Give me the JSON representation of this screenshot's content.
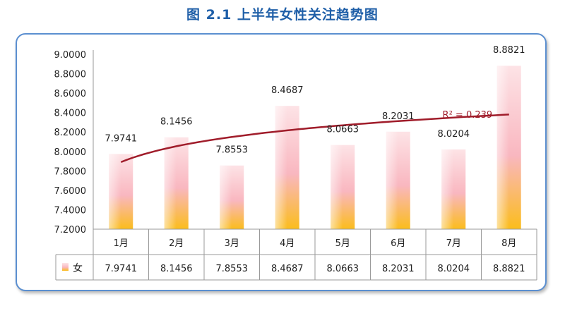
{
  "title": "图 2.1 上半年女性关注趋势图",
  "chart_data": {
    "type": "bar",
    "title": "图 2.1 上半年女性关注趋势图",
    "categories": [
      "1月",
      "2月",
      "3月",
      "4月",
      "5月",
      "6月",
      "7月",
      "8月"
    ],
    "series": [
      {
        "name": "女",
        "values": [
          7.9741,
          8.1456,
          7.8553,
          8.4687,
          8.0663,
          8.2031,
          8.0204,
          8.8821
        ]
      }
    ],
    "value_labels": [
      "7.9741",
      "8.1456",
      "7.8553",
      "8.4687",
      "8.0663",
      "8.2031",
      "8.0204",
      "8.8821"
    ],
    "ylim": [
      7.2,
      9.0
    ],
    "y_ticks": [
      "9.0000",
      "8.8000",
      "8.6000",
      "8.4000",
      "8.2000",
      "8.0000",
      "7.8000",
      "7.6000",
      "7.4000",
      "7.2000"
    ],
    "y_tick_values": [
      9.0,
      8.8,
      8.6,
      8.4,
      8.2,
      8.0,
      7.8,
      7.6,
      7.4,
      7.2
    ],
    "trendline": {
      "type": "logarithmic",
      "label": "R² = 0.239",
      "start_value": 7.89,
      "end_value": 8.38
    },
    "data_table": true,
    "grid": false,
    "bar_colors": {
      "top": "#fde3e6",
      "middle": "#f9b7c0",
      "bottom": "#fbbd1c"
    },
    "trend_color": "#a01c2a",
    "border_color": "#5b8fd0"
  }
}
